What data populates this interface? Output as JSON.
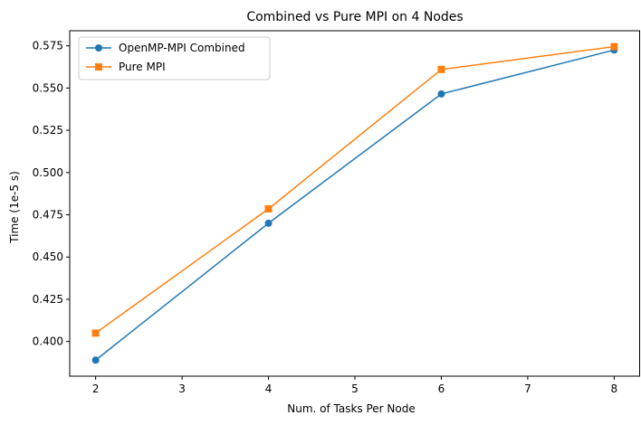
{
  "chart_data": {
    "type": "line",
    "title": "Combined vs Pure MPI on 4 Nodes",
    "xlabel": "Num. of Tasks Per Node",
    "ylabel": "Time (1e-5 s)",
    "xlim": [
      1.7,
      8.3
    ],
    "ylim": [
      0.3795,
      0.5839
    ],
    "xticks": [
      2,
      3,
      4,
      5,
      6,
      7,
      8
    ],
    "xtick_labels": [
      "2",
      "3",
      "4",
      "5",
      "6",
      "7",
      "8"
    ],
    "yticks": [
      0.4,
      0.425,
      0.45,
      0.475,
      0.5,
      0.525,
      0.55,
      0.575
    ],
    "ytick_labels": [
      "0.400",
      "0.425",
      "0.450",
      "0.475",
      "0.500",
      "0.525",
      "0.550",
      "0.575"
    ],
    "grid": false,
    "legend_position": "top-left",
    "x": [
      2,
      4,
      6,
      8
    ],
    "series": [
      {
        "name": "OpenMP-MPI Combined",
        "values": [
          0.389,
          0.47,
          0.5465,
          0.5725
        ],
        "color": "#1f77b4",
        "marker": "circle"
      },
      {
        "name": "Pure MPI",
        "values": [
          0.405,
          0.4785,
          0.561,
          0.5745
        ],
        "color": "#ff7f0e",
        "marker": "square"
      }
    ]
  }
}
